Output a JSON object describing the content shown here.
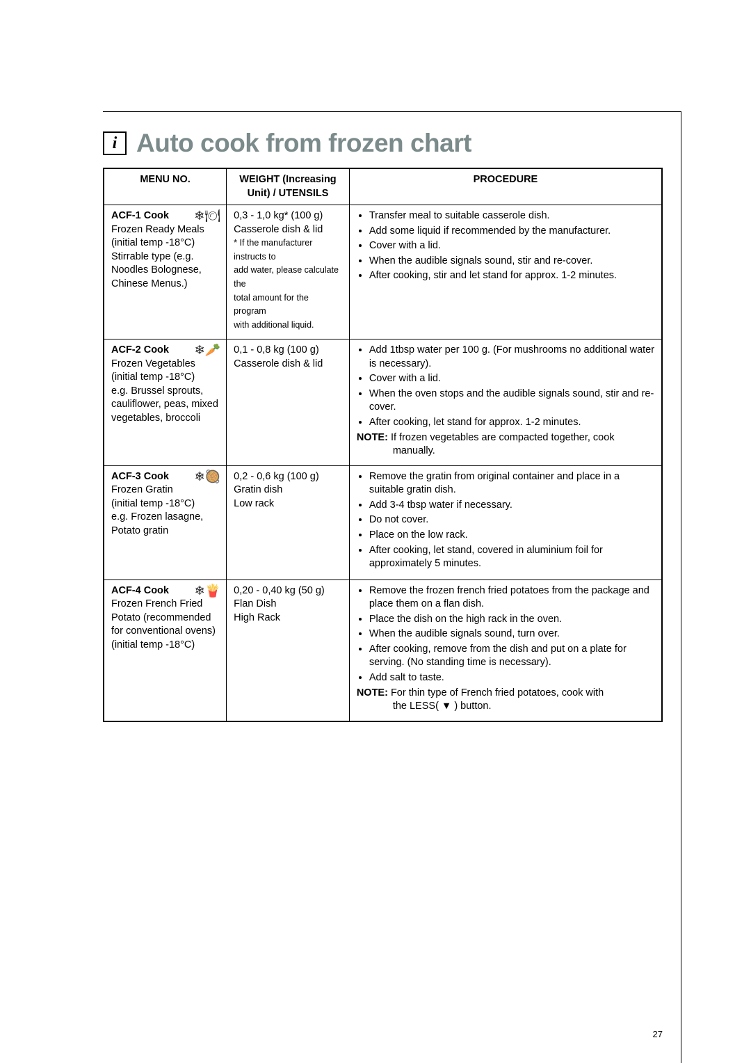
{
  "title": "Auto cook from frozen chart",
  "info_glyph": "i",
  "headers": {
    "menu": "MENU NO.",
    "weight_l1": "WEIGHT (Increasing",
    "weight_l2": "Unit) / UTENSILS",
    "procedure": "PROCEDURE"
  },
  "rows": [
    {
      "menu_title": "ACF-1 Cook",
      "menu_icon": "❄🍽",
      "menu_lines": [
        "Frozen Ready Meals",
        "(initial temp -18°C)",
        "Stirrable type (e.g.",
        "Noodles Bolognese,",
        "Chinese Menus.)"
      ],
      "weight_main": "0,3 - 1,0 kg* (100 g)",
      "weight_lines": [
        "Casserole dish & lid"
      ],
      "weight_note_lines": [
        "* If the manufacturer instructs to",
        "add water, please calculate the",
        "total amount for the program",
        "with additional liquid."
      ],
      "procedure": [
        "Transfer meal to suitable casserole dish.",
        "Add some liquid if recommended by the manufacturer.",
        "Cover with a lid.",
        "When the audible signals sound, stir and re-cover.",
        "After cooking, stir and let stand for approx. 1-2 minutes."
      ],
      "note_label": "",
      "note_text": "",
      "note_cont": ""
    },
    {
      "menu_title": "ACF-2 Cook",
      "menu_icon": "❄🥕",
      "menu_lines": [
        "Frozen Vegetables",
        "(initial temp -18°C)",
        "e.g. Brussel sprouts,",
        "cauliflower, peas, mixed",
        "vegetables, broccoli"
      ],
      "weight_main": "0,1 - 0,8 kg (100 g)",
      "weight_lines": [
        "Casserole dish & lid"
      ],
      "weight_note_lines": [],
      "procedure": [
        "Add 1tbsp water per 100 g. (For mushrooms no additional water is necessary).",
        "Cover with a lid.",
        "When the oven stops and the audible signals sound, stir and re-cover.",
        "After cooking, let stand for approx. 1-2 minutes."
      ],
      "note_label": "NOTE:",
      "note_text": "If frozen vegetables are compacted together, cook",
      "note_cont": "manually."
    },
    {
      "menu_title": "ACF-3 Cook",
      "menu_icon": "❄🥘",
      "menu_lines": [
        "Frozen Gratin",
        "(initial temp -18°C)",
        "e.g. Frozen lasagne,",
        "Potato gratin"
      ],
      "weight_main": "0,2 - 0,6 kg (100 g)",
      "weight_lines": [
        "Gratin dish",
        "Low rack"
      ],
      "weight_note_lines": [],
      "procedure": [
        "Remove the gratin from original container and place in a suitable gratin dish.",
        "Add 3-4 tbsp water if necessary.",
        "Do not cover.",
        "Place on the low rack.",
        "After cooking, let stand, covered in aluminium foil for approximately 5 minutes."
      ],
      "note_label": "",
      "note_text": "",
      "note_cont": ""
    },
    {
      "menu_title": "ACF-4  Cook",
      "menu_icon": "❄🍟",
      "menu_lines": [
        "Frozen French Fried",
        "Potato (recommended",
        "for conventional ovens)",
        "(initial temp -18°C)"
      ],
      "weight_main": "0,20 - 0,40 kg (50 g)",
      "weight_lines": [
        "Flan Dish",
        "High Rack"
      ],
      "weight_note_lines": [],
      "procedure": [
        "Remove the frozen french fried potatoes from the package and place them on a flan dish.",
        "Place the dish on the high rack in the oven.",
        "When the audible signals sound, turn over.",
        "After cooking, remove from the dish and put on a plate for serving.  (No standing time is necessary).",
        "Add salt to taste."
      ],
      "note_label": "NOTE:",
      "note_text": "For thin type of French fried potatoes, cook with",
      "note_cont": "the LESS( ▼ ) button."
    }
  ],
  "page_number": "27"
}
